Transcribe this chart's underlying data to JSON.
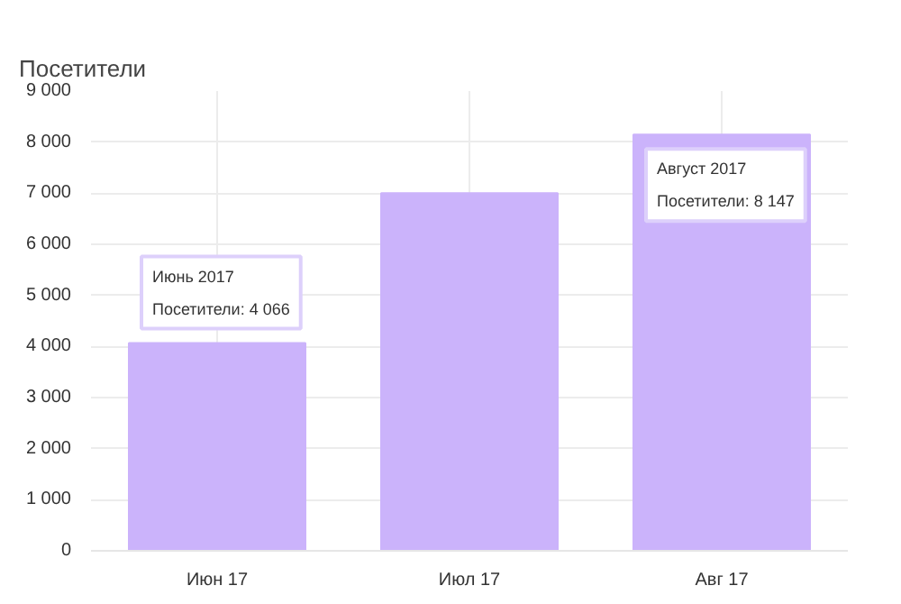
{
  "chart_data": {
    "type": "bar",
    "title": "Посетители",
    "categories": [
      "Июн 17",
      "Июл 17",
      "Авг 17"
    ],
    "values": [
      4066,
      7000,
      8147
    ],
    "color": "#cbb3fb",
    "ylim": [
      0,
      9000
    ],
    "yticks": [
      0,
      {
        "value": 1000,
        "label": "1 000"
      },
      {
        "value": 2000,
        "label": "2 000"
      },
      {
        "value": 3000,
        "label": "3 000"
      },
      {
        "value": 4000,
        "label": "4 000"
      },
      {
        "value": 5000,
        "label": "5 000"
      },
      {
        "value": 6000,
        "label": "6 000"
      },
      {
        "value": 7000,
        "label": "7 000"
      },
      {
        "value": 8000,
        "label": "8 000"
      },
      {
        "value": 9000,
        "label": "9 000"
      }
    ],
    "grid": true,
    "annotations": [
      {
        "text": "Июнь 2017\nПосетители: 4 066",
        "x": "Июн 17",
        "y": 4066
      },
      {
        "text": "Август 2017\nПосетители: 8 147",
        "x": "Авг 17",
        "y": 8147
      }
    ]
  }
}
